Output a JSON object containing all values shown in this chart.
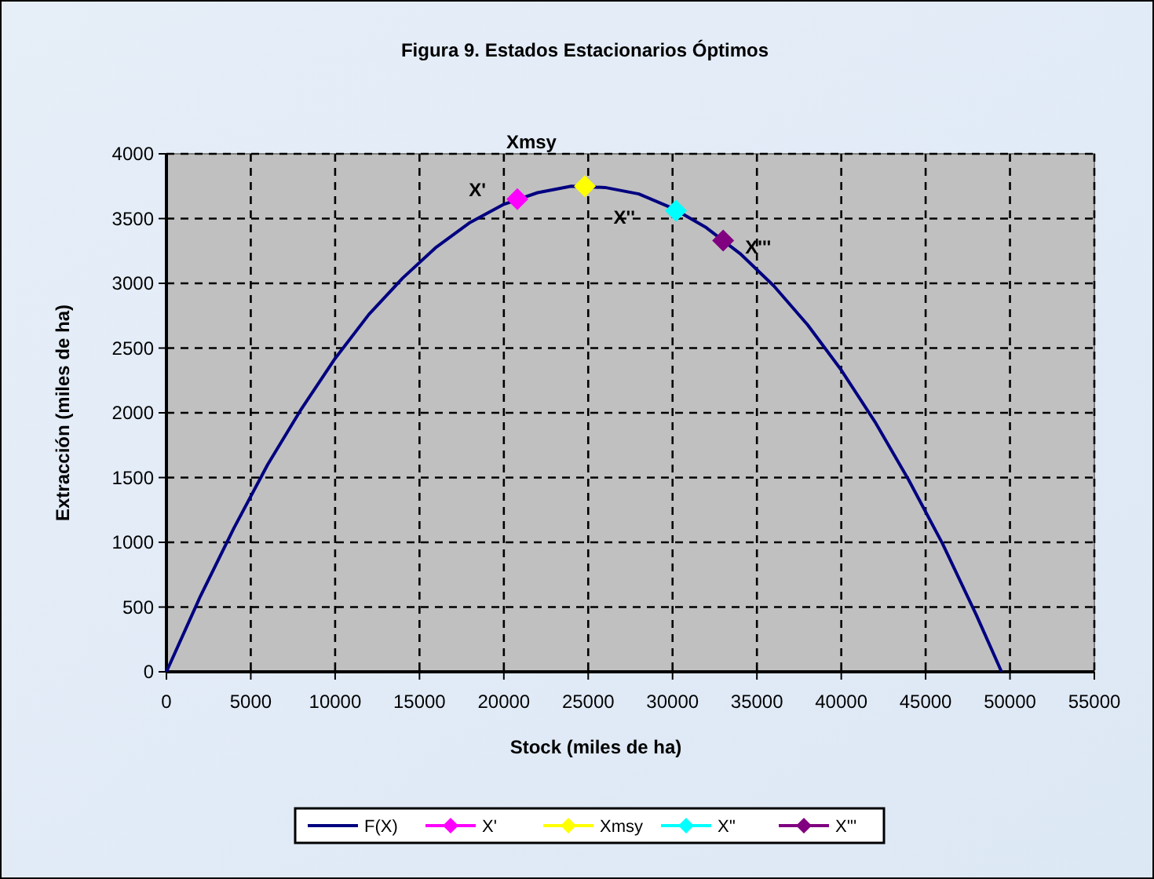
{
  "chart_data": {
    "type": "line",
    "title": "Figura 9. Estados Estacionarios Óptimos",
    "xlabel": "Stock (miles de ha)",
    "ylabel": "Extracción (miles de ha)",
    "xlim": [
      0,
      55000
    ],
    "xticks": [
      0,
      5000,
      10000,
      15000,
      20000,
      25000,
      30000,
      35000,
      40000,
      45000,
      50000,
      55000
    ],
    "ylim": [
      0,
      4000
    ],
    "yticks": [
      0,
      500,
      1000,
      1500,
      2000,
      2500,
      3000,
      3500,
      4000
    ],
    "grid": true,
    "legend": "bottom",
    "series": [
      {
        "name": "F(X)",
        "color": "#000080",
        "marker": "none",
        "x": [
          0,
          2000,
          4000,
          6000,
          8000,
          10000,
          12000,
          14000,
          16000,
          18000,
          20000,
          22000,
          24000,
          26000,
          28000,
          30000,
          32000,
          34000,
          36000,
          38000,
          40000,
          42000,
          44000,
          46000,
          48000,
          49500
        ],
        "values": [
          0,
          580,
          1110,
          1600,
          2030,
          2420,
          2760,
          3040,
          3280,
          3470,
          3610,
          3700,
          3750,
          3740,
          3690,
          3580,
          3430,
          3230,
          2980,
          2680,
          2330,
          1930,
          1480,
          990,
          440,
          0
        ]
      },
      {
        "name": "X'",
        "type": "scatter",
        "color": "#ff00ff",
        "marker": "diamond",
        "x": [
          20800
        ],
        "values": [
          3650
        ]
      },
      {
        "name": "Xmsy",
        "type": "scatter",
        "color": "#ffff00",
        "marker": "diamond",
        "x": [
          24800
        ],
        "values": [
          3750
        ]
      },
      {
        "name": "X''",
        "type": "scatter",
        "color": "#00ffff",
        "marker": "diamond",
        "x": [
          30200
        ],
        "values": [
          3560
        ]
      },
      {
        "name": "X'''",
        "type": "scatter",
        "color": "#800080",
        "marker": "diamond",
        "x": [
          33000
        ],
        "values": [
          3330
        ]
      }
    ]
  }
}
